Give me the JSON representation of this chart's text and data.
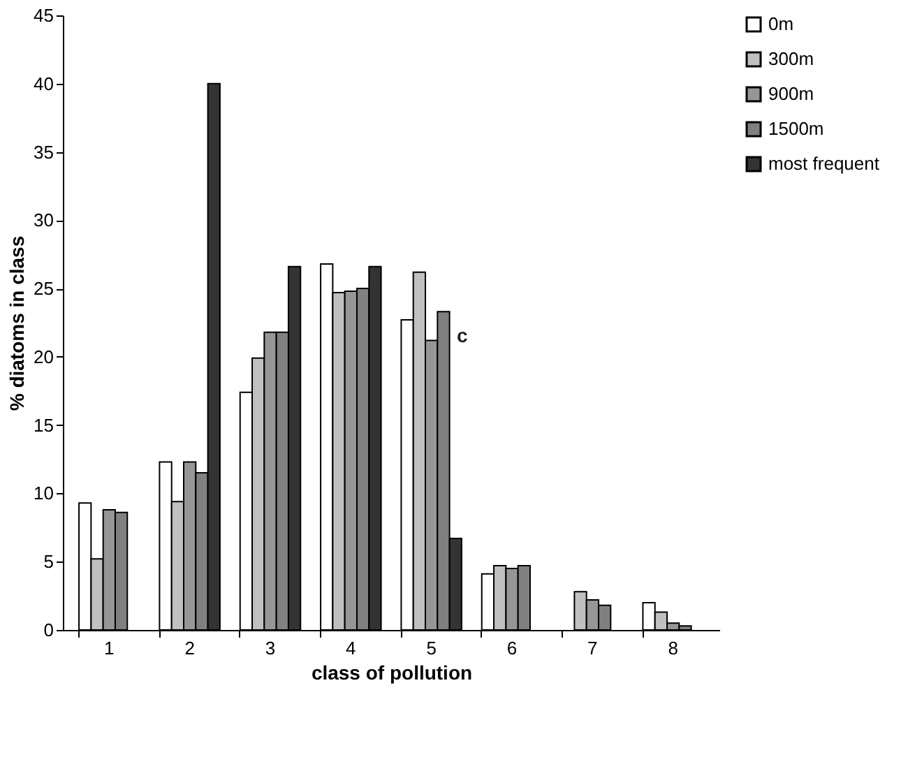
{
  "chart_data": {
    "type": "bar",
    "xlabel": "class of pollution",
    "ylabel": "% diatoms in class",
    "categories": [
      "1",
      "2",
      "3",
      "4",
      "5",
      "6",
      "7",
      "8"
    ],
    "series": [
      {
        "name": "0m",
        "color": "#ffffff",
        "values": [
          9.3,
          12.3,
          17.4,
          26.8,
          22.7,
          4.1,
          null,
          2.0
        ]
      },
      {
        "name": "300m",
        "color": "#c0c0c0",
        "values": [
          5.2,
          9.4,
          19.9,
          24.7,
          26.2,
          4.7,
          2.8,
          1.3
        ]
      },
      {
        "name": "900m",
        "color": "#969696",
        "values": [
          8.8,
          12.3,
          21.8,
          24.8,
          21.2,
          4.5,
          2.2,
          0.5
        ]
      },
      {
        "name": "1500m",
        "color": "#808080",
        "values": [
          8.6,
          11.5,
          21.8,
          25.0,
          23.3,
          4.7,
          1.8,
          0.3
        ]
      },
      {
        "name": "most frequent",
        "color": "#333333",
        "values": [
          null,
          40,
          26.6,
          26.6,
          6.7,
          null,
          null,
          null
        ]
      }
    ],
    "annotations": [
      {
        "text": "c",
        "x": "5",
        "y": 21.5
      }
    ],
    "ylim": [
      0,
      45
    ],
    "yticks": [
      0,
      5,
      10,
      15,
      20,
      25,
      30,
      35,
      40,
      45
    ],
    "grid": false,
    "legend": "right"
  }
}
